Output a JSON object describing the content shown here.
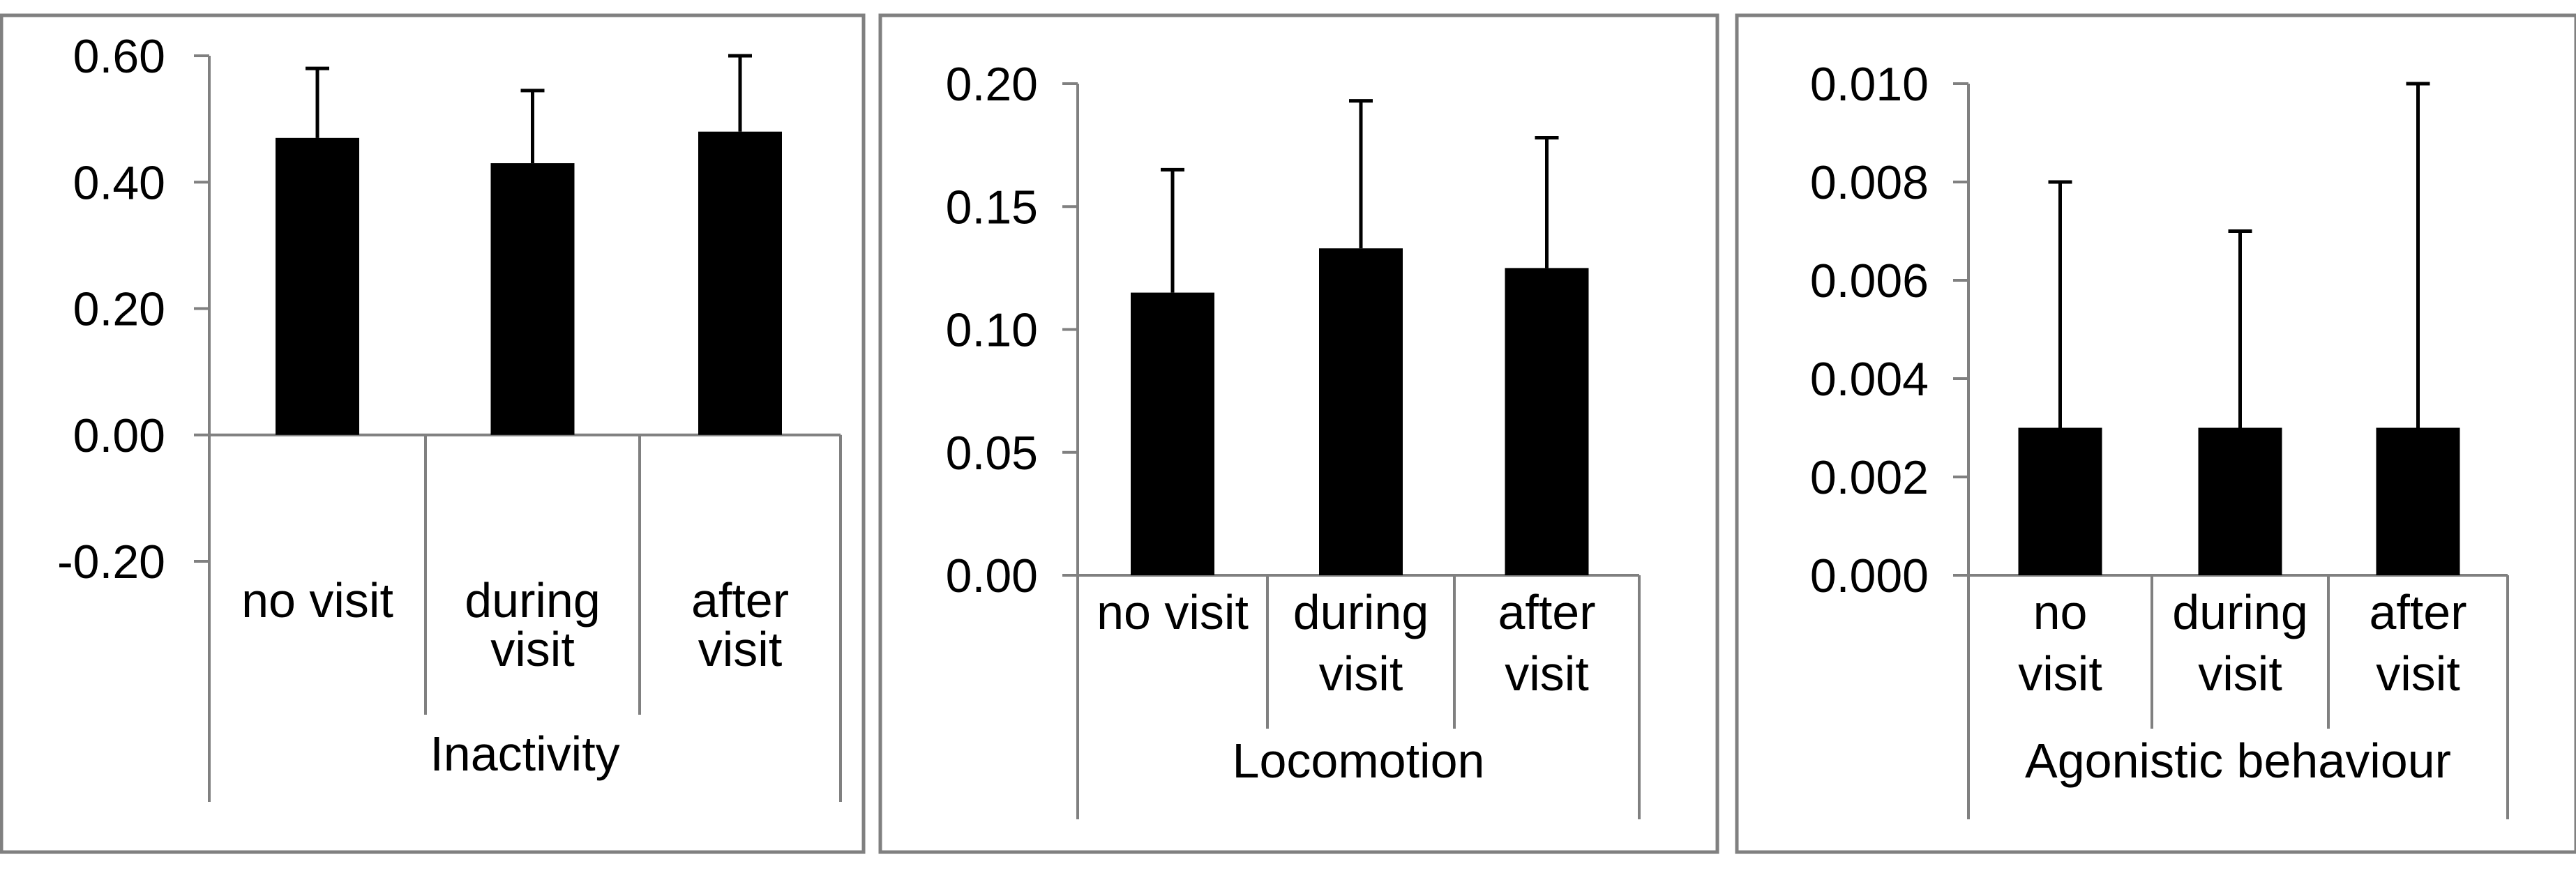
{
  "chart_data": [
    {
      "type": "bar",
      "xlabel": "Inactivity",
      "ylabel": "",
      "title": "",
      "categories": [
        "no visit",
        "during visit",
        "after visit"
      ],
      "category_lines": [
        [
          "no visit"
        ],
        [
          "during",
          "visit"
        ],
        [
          "after",
          "visit"
        ]
      ],
      "values": [
        0.47,
        0.43,
        0.48
      ],
      "errors": [
        0.11,
        0.115,
        0.12
      ],
      "ylim": [
        -0.2,
        0.6
      ],
      "yticks": [
        -0.2,
        0.0,
        0.2,
        0.4,
        0.6
      ],
      "ytick_labels": [
        "-0.20",
        "0.00",
        "0.20",
        "0.40",
        "0.60"
      ]
    },
    {
      "type": "bar",
      "xlabel": "Locomotion",
      "ylabel": "",
      "title": "",
      "categories": [
        "no visit",
        "during visit",
        "after visit"
      ],
      "category_lines": [
        [
          "no visit"
        ],
        [
          "during",
          "visit"
        ],
        [
          "after",
          "visit"
        ]
      ],
      "values": [
        0.115,
        0.133,
        0.125
      ],
      "errors": [
        0.05,
        0.06,
        0.053
      ],
      "ylim": [
        0.0,
        0.2
      ],
      "yticks": [
        0.0,
        0.05,
        0.1,
        0.15,
        0.2
      ],
      "ytick_labels": [
        "0.00",
        "0.05",
        "0.10",
        "0.15",
        "0.20"
      ]
    },
    {
      "type": "bar",
      "xlabel": "Agonistic behaviour",
      "ylabel": "",
      "title": "",
      "categories": [
        "no visit",
        "during visit",
        "after visit"
      ],
      "category_lines": [
        [
          "no",
          "visit"
        ],
        [
          "during",
          "visit"
        ],
        [
          "after",
          "visit"
        ]
      ],
      "values": [
        0.003,
        0.003,
        0.003
      ],
      "errors": [
        0.005,
        0.004,
        0.007
      ],
      "ylim": [
        0.0,
        0.01
      ],
      "yticks": [
        0.0,
        0.002,
        0.004,
        0.006,
        0.008,
        0.01
      ],
      "ytick_labels": [
        "0.000",
        "0.002",
        "0.004",
        "0.006",
        "0.008",
        "0.010"
      ]
    }
  ],
  "style": {
    "bar_color": "#000000",
    "axis_color": "#808080",
    "frame_color": "#808080"
  }
}
